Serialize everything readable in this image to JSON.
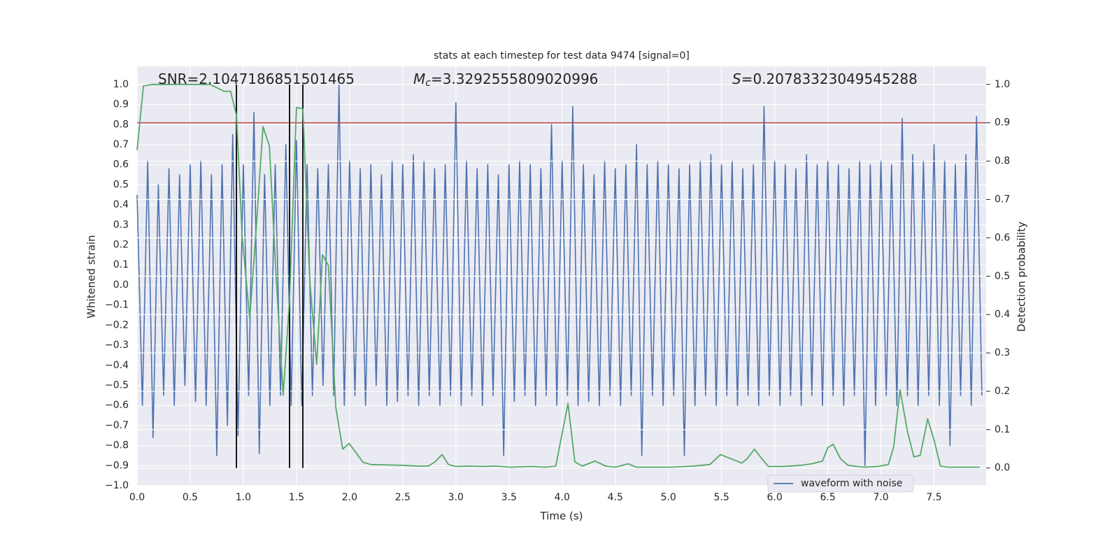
{
  "chart_data": {
    "type": "line",
    "title": "stats at each timestep for test data 9474 [signal=0]",
    "xlabel": "Time (s)",
    "ylabel": "Whitened strain",
    "y2label": "Detection probability",
    "xlim": [
      0,
      7.99
    ],
    "ylim": [
      -1.0,
      1.09
    ],
    "y2lim": [
      -0.046,
      1.047
    ],
    "grid": true,
    "background": "#eaeaf2",
    "legend": "lower right",
    "xticks": [
      {
        "value": 0,
        "label": "0.0"
      },
      {
        "value": 0.5,
        "label": "0.5"
      },
      {
        "value": 1,
        "label": "1.0"
      },
      {
        "value": 1.5,
        "label": "1.5"
      },
      {
        "value": 2,
        "label": "2.0"
      },
      {
        "value": 2.5,
        "label": "2.5"
      },
      {
        "value": 3,
        "label": "3.0"
      },
      {
        "value": 3.5,
        "label": "3.5"
      },
      {
        "value": 4,
        "label": "4.0"
      },
      {
        "value": 4.5,
        "label": "4.5"
      },
      {
        "value": 5,
        "label": "5.0"
      },
      {
        "value": 5.5,
        "label": "5.5"
      },
      {
        "value": 6,
        "label": "6.0"
      },
      {
        "value": 6.5,
        "label": "6.5"
      },
      {
        "value": 7,
        "label": "7.0"
      },
      {
        "value": 7.5,
        "label": "7.5"
      }
    ],
    "yticks": [
      {
        "value": -1.0,
        "label": "−1.0"
      },
      {
        "value": -0.9,
        "label": "−0.9"
      },
      {
        "value": -0.8,
        "label": "−0.8"
      },
      {
        "value": -0.7,
        "label": "−0.7"
      },
      {
        "value": -0.6,
        "label": "−0.6"
      },
      {
        "value": -0.5,
        "label": "−0.5"
      },
      {
        "value": -0.4,
        "label": "−0.4"
      },
      {
        "value": -0.3,
        "label": "−0.3"
      },
      {
        "value": -0.2,
        "label": "−0.2"
      },
      {
        "value": -0.1,
        "label": "−0.1"
      },
      {
        "value": 0,
        "label": "0.0"
      },
      {
        "value": 0.1,
        "label": "0.1"
      },
      {
        "value": 0.2,
        "label": "0.2"
      },
      {
        "value": 0.3,
        "label": "0.3"
      },
      {
        "value": 0.4,
        "label": "0.4"
      },
      {
        "value": 0.5,
        "label": "0.5"
      },
      {
        "value": 0.6,
        "label": "0.6"
      },
      {
        "value": 0.7,
        "label": "0.7"
      },
      {
        "value": 0.8,
        "label": "0.8"
      },
      {
        "value": 0.9,
        "label": "0.9"
      },
      {
        "value": 1.0,
        "label": "1.0"
      }
    ],
    "y2ticks": [
      {
        "value": 0,
        "label": "0.0"
      },
      {
        "value": 0.1,
        "label": "0.1"
      },
      {
        "value": 0.2,
        "label": "0.2"
      },
      {
        "value": 0.3,
        "label": "0.3"
      },
      {
        "value": 0.4,
        "label": "0.4"
      },
      {
        "value": 0.5,
        "label": "0.5"
      },
      {
        "value": 0.6,
        "label": "0.6"
      },
      {
        "value": 0.7,
        "label": "0.7"
      },
      {
        "value": 0.8,
        "label": "0.8"
      },
      {
        "value": 0.9,
        "label": "0.9"
      },
      {
        "value": 1.0,
        "label": "1.0"
      }
    ],
    "series": [
      {
        "name": "waveform with noise",
        "color": "#4c72b0",
        "x": [
          0,
          0.05,
          0.1,
          0.15,
          0.2,
          0.25,
          0.3,
          0.35,
          0.4,
          0.45,
          0.5,
          0.55,
          0.6,
          0.65,
          0.7,
          0.75,
          0.8,
          0.85,
          0.9,
          0.95,
          1.0,
          1.05,
          1.1,
          1.15,
          1.2,
          1.25,
          1.3,
          1.35,
          1.4,
          1.45,
          1.5,
          1.55,
          1.6,
          1.65,
          1.7,
          1.75,
          1.8,
          1.85,
          1.9,
          1.95,
          2.0,
          2.05,
          2.1,
          2.15,
          2.2,
          2.25,
          2.3,
          2.35,
          2.4,
          2.45,
          2.5,
          2.55,
          2.6,
          2.65,
          2.7,
          2.75,
          2.8,
          2.85,
          2.9,
          2.95,
          3.0,
          3.05,
          3.1,
          3.15,
          3.2,
          3.25,
          3.3,
          3.35,
          3.4,
          3.45,
          3.5,
          3.55,
          3.6,
          3.65,
          3.7,
          3.75,
          3.8,
          3.85,
          3.9,
          3.95,
          4.0,
          4.05,
          4.1,
          4.15,
          4.2,
          4.25,
          4.3,
          4.35,
          4.4,
          4.45,
          4.5,
          4.55,
          4.6,
          4.65,
          4.7,
          4.75,
          4.8,
          4.85,
          4.9,
          4.95,
          5.0,
          5.05,
          5.1,
          5.15,
          5.2,
          5.25,
          5.3,
          5.35,
          5.4,
          5.45,
          5.5,
          5.55,
          5.6,
          5.65,
          5.7,
          5.75,
          5.8,
          5.85,
          5.9,
          5.95,
          6.0,
          6.05,
          6.1,
          6.15,
          6.2,
          6.25,
          6.3,
          6.35,
          6.4,
          6.45,
          6.5,
          6.55,
          6.6,
          6.65,
          6.7,
          6.75,
          6.8,
          6.85,
          6.9,
          6.95,
          7.0,
          7.05,
          7.1,
          7.15,
          7.2,
          7.25,
          7.3,
          7.35,
          7.4,
          7.45,
          7.5,
          7.55,
          7.6,
          7.65,
          7.7,
          7.75,
          7.8,
          7.85,
          7.9,
          7.95
        ],
        "values": [
          0.45,
          -0.6,
          0.62,
          -0.76,
          0.5,
          -0.55,
          0.58,
          -0.6,
          0.55,
          -0.5,
          0.6,
          -0.58,
          0.62,
          -0.6,
          0.55,
          -0.85,
          0.6,
          -0.7,
          0.75,
          -0.75,
          0.6,
          -0.55,
          0.86,
          -0.84,
          0.55,
          -0.6,
          0.6,
          -0.55,
          0.7,
          -0.6,
          0.72,
          -0.6,
          0.6,
          -0.55,
          0.58,
          -0.5,
          0.6,
          -0.55,
          1.0,
          -0.6,
          0.62,
          -0.55,
          0.58,
          -0.6,
          0.6,
          -0.5,
          0.55,
          -0.6,
          0.62,
          -0.58,
          0.6,
          -0.55,
          0.65,
          -0.6,
          0.62,
          -0.55,
          0.58,
          -0.6,
          0.6,
          -0.55,
          0.91,
          -0.6,
          0.62,
          -0.55,
          0.58,
          -0.6,
          0.6,
          -0.55,
          0.55,
          -0.85,
          0.6,
          -0.58,
          0.62,
          -0.55,
          0.6,
          -0.6,
          0.58,
          -0.55,
          0.8,
          -0.6,
          0.62,
          -0.55,
          0.89,
          -0.6,
          0.6,
          -0.58,
          0.55,
          -0.6,
          0.62,
          -0.55,
          0.58,
          -0.6,
          0.6,
          -0.55,
          0.7,
          -0.85,
          0.6,
          -0.55,
          0.62,
          -0.6,
          0.6,
          -0.55,
          0.58,
          -0.85,
          0.6,
          -0.6,
          0.62,
          -0.55,
          0.65,
          -0.6,
          0.6,
          -0.55,
          0.62,
          -0.6,
          0.58,
          -0.55,
          0.6,
          -0.6,
          0.89,
          -0.55,
          0.62,
          -0.6,
          0.6,
          -0.55,
          0.58,
          -0.6,
          0.65,
          -0.55,
          0.6,
          -0.6,
          0.62,
          -0.55,
          0.6,
          -0.6,
          0.58,
          -0.55,
          0.62,
          -0.9,
          0.6,
          -0.6,
          0.62,
          -0.55,
          0.6,
          -0.6,
          0.83,
          -0.55,
          0.65,
          -0.6,
          0.62,
          -0.55,
          0.7,
          -0.6,
          0.62,
          -0.8,
          0.6,
          -0.55,
          0.65,
          -0.6,
          0.84,
          -0.55
        ]
      },
      {
        "color": "#55a868",
        "axis": "y2",
        "x": [
          0,
          0.06,
          0.145,
          0.685,
          0.82,
          0.88,
          0.935,
          0.99,
          1.06,
          1.125,
          1.185,
          1.245,
          1.31,
          1.375,
          1.435,
          1.5,
          1.56,
          1.625,
          1.69,
          1.745,
          1.8,
          1.87,
          1.935,
          1.995,
          2.06,
          2.125,
          2.2,
          2.495,
          2.63,
          2.74,
          2.8,
          2.87,
          2.93,
          3.0,
          3.12,
          3.25,
          3.38,
          3.51,
          3.71,
          3.84,
          3.94,
          4.055,
          4.12,
          4.19,
          4.31,
          4.41,
          4.5,
          4.62,
          4.7,
          5.03,
          5.23,
          5.39,
          5.49,
          5.59,
          5.69,
          5.74,
          5.81,
          5.88,
          5.94,
          6.08,
          6.25,
          6.35,
          6.45,
          6.5,
          6.55,
          6.62,
          6.69,
          6.84,
          6.97,
          7.07,
          7.12,
          7.18,
          7.25,
          7.31,
          7.37,
          7.44,
          7.5,
          7.56,
          7.63,
          7.93
        ],
        "values": [
          0.829,
          0.996,
          1.0,
          1.0,
          0.982,
          0.982,
          0.92,
          0.6,
          0.39,
          0.64,
          0.89,
          0.84,
          0.49,
          0.19,
          0.44,
          0.94,
          0.936,
          0.49,
          0.27,
          0.556,
          0.528,
          0.158,
          0.049,
          0.064,
          0.04,
          0.015,
          0.009,
          0.007,
          0.005,
          0.005,
          0.015,
          0.035,
          0.009,
          0.004,
          0.005,
          0.004,
          0.005,
          0.002,
          0.004,
          0.002,
          0.005,
          0.168,
          0.016,
          0.005,
          0.018,
          0.005,
          0.002,
          0.011,
          0.002,
          0.002,
          0.005,
          0.009,
          0.035,
          0.024,
          0.013,
          0.024,
          0.049,
          0.024,
          0.004,
          0.004,
          0.007,
          0.011,
          0.018,
          0.053,
          0.062,
          0.024,
          0.007,
          0.002,
          0.004,
          0.009,
          0.055,
          0.204,
          0.095,
          0.029,
          0.033,
          0.128,
          0.073,
          0.005,
          0.002,
          0.002
        ]
      }
    ],
    "threshold": {
      "value": 0.9,
      "axis": "y2",
      "color": "#c44e52"
    },
    "vlines": {
      "x": [
        0.935,
        1.435,
        1.56
      ],
      "range": [
        0,
        1
      ],
      "axis": "y2",
      "color": "#000000"
    },
    "annotations": [
      {
        "text": "SNR=2.1047186851501465"
      },
      {
        "italic": "M",
        "sub": "c",
        "text": "=3.3292555809020996"
      },
      {
        "italic": "S",
        "text": "=0.20783323049545288"
      }
    ]
  }
}
